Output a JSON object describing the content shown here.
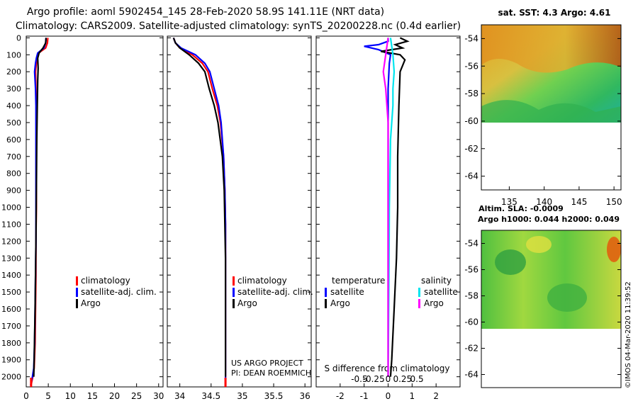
{
  "header": {
    "line1": "Argo profile: aoml 5902454_145 28-Feb-2020 58.9S 141.11E (NRT data)",
    "line2": "Climatology: CARS2009. Satellite-adjusted climatology: synTS_20200228.nc (0.4d earlier)"
  },
  "colors": {
    "climatology": "#ff0000",
    "satellite": "#0000ff",
    "argo": "#000000",
    "satellite_s": "#00e5ee",
    "argo_s": "#ff00ff"
  },
  "chart_data": [
    {
      "id": "temp-profile",
      "type": "line",
      "xlabel": "",
      "ylabel": "Depth",
      "xlim": [
        0,
        31
      ],
      "ylim": [
        2060,
        -10
      ],
      "xticks": [
        0,
        5,
        10,
        15,
        20,
        25,
        30
      ],
      "yticks": [
        0,
        100,
        200,
        300,
        400,
        500,
        600,
        700,
        800,
        900,
        1000,
        1100,
        1200,
        1300,
        1400,
        1500,
        1600,
        1700,
        1800,
        1900,
        2000
      ],
      "legend": [
        "climatology",
        "satellite-adj. clim.",
        "Argo"
      ],
      "series": [
        {
          "name": "climatology",
          "color_key": "climatology",
          "x": [
            4.9,
            4.8,
            4.4,
            2.8,
            2.5,
            2.3,
            2.1,
            2.2,
            2.3,
            2.3,
            2.3,
            2.3,
            2.2,
            2.2,
            2.1,
            2.0,
            1.8,
            1.5,
            1.1
          ],
          "y": [
            0,
            30,
            60,
            90,
            120,
            150,
            200,
            300,
            400,
            600,
            800,
            1000,
            1200,
            1400,
            1600,
            1800,
            1950,
            2000,
            2050
          ]
        },
        {
          "name": "satellite-adj. clim.",
          "color_key": "satellite",
          "x": [
            4.5,
            4.4,
            4.0,
            2.6,
            2.3,
            2.1,
            1.9,
            2.1,
            2.2,
            2.2,
            2.2,
            2.2,
            2.2,
            2.1,
            2.0,
            1.9,
            1.7,
            1.4,
            1.0
          ],
          "y": [
            0,
            30,
            60,
            90,
            120,
            150,
            200,
            300,
            400,
            600,
            800,
            1000,
            1200,
            1400,
            1600,
            1800,
            1950,
            2000,
            2050
          ]
        },
        {
          "name": "Argo",
          "color_key": "argo",
          "x": [
            4.5,
            4.4,
            3.8,
            2.9,
            2.6,
            2.7,
            2.6,
            2.5,
            2.4,
            2.3,
            2.2,
            2.0,
            1.8,
            1.7
          ],
          "y": [
            0,
            30,
            60,
            90,
            120,
            180,
            250,
            400,
            600,
            900,
            1200,
            1600,
            1900,
            2000
          ]
        }
      ]
    },
    {
      "id": "sal-profile",
      "type": "line",
      "xlabel": "",
      "ylabel": "Depth",
      "xlim": [
        33.8,
        36.1
      ],
      "ylim": [
        2060,
        -10
      ],
      "xticks": [
        34,
        34.5,
        35,
        35.5,
        36
      ],
      "legend": [
        "climatology",
        "satellite-adj. clim.",
        "Argo"
      ],
      "annotations": [
        "US ARGO PROJECT",
        "PI: DEAN ROEMMICH"
      ],
      "series": [
        {
          "name": "climatology",
          "color_key": "climatology",
          "x": [
            33.9,
            33.93,
            34.0,
            34.2,
            34.36,
            34.45,
            34.52,
            34.6,
            34.65,
            34.7,
            34.72,
            34.73,
            34.73,
            34.73,
            34.73,
            34.73
          ],
          "y": [
            0,
            30,
            60,
            100,
            150,
            200,
            300,
            400,
            500,
            700,
            900,
            1100,
            1300,
            1600,
            1900,
            2050
          ]
        },
        {
          "name": "satellite-adj. clim.",
          "color_key": "satellite",
          "x": [
            33.9,
            33.93,
            34.02,
            34.25,
            34.4,
            34.48,
            34.55,
            34.62,
            34.66,
            34.7,
            34.72,
            34.73,
            34.73,
            34.73,
            34.73,
            34.73
          ],
          "y": [
            0,
            30,
            60,
            100,
            150,
            200,
            300,
            400,
            500,
            700,
            900,
            1100,
            1300,
            1600,
            1900,
            2050
          ]
        },
        {
          "name": "Argo",
          "color_key": "argo",
          "x": [
            33.9,
            33.93,
            34.0,
            34.15,
            34.3,
            34.4,
            34.47,
            34.55,
            34.61,
            34.68,
            34.71,
            34.72,
            34.73,
            34.73
          ],
          "y": [
            0,
            30,
            60,
            100,
            150,
            200,
            300,
            400,
            500,
            700,
            900,
            1100,
            1300,
            2000
          ]
        }
      ]
    },
    {
      "id": "diff-profile",
      "type": "line",
      "title": "S difference from climatology",
      "xlabel": "",
      "ylabel": "Depth",
      "xlim": [
        -3,
        3
      ],
      "ylim": [
        2060,
        -10
      ],
      "xticks": [
        -2,
        -1,
        0,
        1,
        2
      ],
      "secondary_xticks": [
        -0.5,
        -0.25,
        0,
        0.25,
        0.5
      ],
      "legend": [
        {
          "title": "temperature",
          "entries": [
            "satellite",
            "Argo"
          ]
        },
        {
          "title": "salinity",
          "entries": [
            "satellite",
            "Argo"
          ]
        }
      ],
      "series": [
        {
          "name": "temperature satellite",
          "color_key": "satellite",
          "x": [
            0.0,
            0.0,
            -0.4,
            -1.0,
            -0.4,
            0.1,
            0.05,
            0.0,
            0.0,
            0.0,
            0.0,
            0.0
          ],
          "y": [
            0,
            20,
            40,
            50,
            70,
            100,
            150,
            300,
            600,
            1000,
            1500,
            2000
          ]
        },
        {
          "name": "temperature Argo",
          "color_key": "argo",
          "x": [
            0.5,
            0.8,
            0.3,
            0.6,
            -0.3,
            0.5,
            0.7,
            0.5,
            0.45,
            0.4,
            0.4,
            0.35,
            0.25,
            0.15,
            0.1
          ],
          "y": [
            0,
            20,
            40,
            60,
            80,
            100,
            130,
            200,
            400,
            700,
            1000,
            1300,
            1600,
            1900,
            2000
          ]
        },
        {
          "name": "salinity satellite",
          "color_key": "satellite_s",
          "x": [
            0.1,
            0.2,
            0.25,
            0.2,
            0.2,
            0.1,
            0.05,
            0.03,
            0.0
          ],
          "y": [
            0,
            100,
            200,
            300,
            400,
            600,
            1000,
            1500,
            2000
          ]
        },
        {
          "name": "salinity Argo",
          "color_key": "argo_s",
          "x": [
            0.0,
            -0.1,
            -0.2,
            -0.1,
            0.0,
            0.0,
            0.0,
            0.0
          ],
          "y": [
            0,
            100,
            200,
            300,
            500,
            1000,
            1500,
            2000
          ]
        }
      ]
    },
    {
      "id": "sst-map",
      "type": "heatmap",
      "title": "sat. SST: 4.3 Argo: 4.61",
      "xlim": [
        131,
        151
      ],
      "ylim": [
        -65,
        -53
      ],
      "xticks": [
        135,
        140,
        145,
        150
      ],
      "yticks": [
        -54,
        -56,
        -58,
        -60,
        -62,
        -64
      ],
      "data_lat_range": [
        -60,
        -53
      ]
    },
    {
      "id": "sla-map",
      "type": "heatmap",
      "title": "Altim. SLA: -0.0009",
      "subtitle": "Argo h1000: 0.044 h2000: 0.049",
      "xlim": [
        131,
        151
      ],
      "ylim": [
        -65,
        -53
      ],
      "yticks": [
        -54,
        -56,
        -58,
        -60,
        -62,
        -64
      ],
      "data_lat_range": [
        -60,
        -53
      ]
    }
  ],
  "footer": {
    "credit": "©IMOS 04-Mar-2020 11:39:52"
  }
}
